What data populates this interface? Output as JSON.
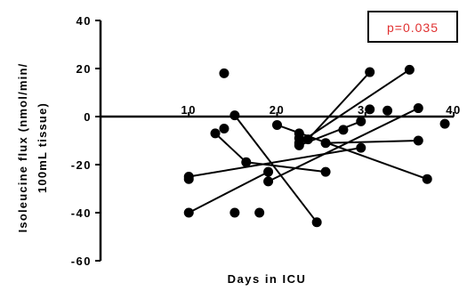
{
  "chart_data": {
    "type": "scatter",
    "title": "",
    "xlabel": "Days in ICU",
    "ylabel_lines": [
      "Isoleucine flux  (nmol/min/",
      "100mL tissue)"
    ],
    "xlim": [
      0,
      40
    ],
    "ylim": [
      -60,
      40
    ],
    "x_ticks": [
      10,
      20,
      30,
      40
    ],
    "y_ticks": [
      40,
      20,
      0,
      -20,
      -40,
      -60
    ],
    "annotation": "p=0.035",
    "annotation_color": "#e03030",
    "grid": false,
    "points": [
      {
        "x": 10.0,
        "y": -25
      },
      {
        "x": 10.0,
        "y": -26
      },
      {
        "x": 10.0,
        "y": -40
      },
      {
        "x": 13.0,
        "y": -7
      },
      {
        "x": 14.0,
        "y": -5
      },
      {
        "x": 14.0,
        "y": 18
      },
      {
        "x": 15.2,
        "y": 0.5
      },
      {
        "x": 15.2,
        "y": -40
      },
      {
        "x": 16.5,
        "y": -19
      },
      {
        "x": 18.0,
        "y": -40
      },
      {
        "x": 19.0,
        "y": -23
      },
      {
        "x": 19.0,
        "y": -27
      },
      {
        "x": 20.0,
        "y": -3.5
      },
      {
        "x": 22.5,
        "y": -7
      },
      {
        "x": 22.5,
        "y": -9
      },
      {
        "x": 22.5,
        "y": -11
      },
      {
        "x": 22.5,
        "y": -12
      },
      {
        "x": 23.5,
        "y": -9.5
      },
      {
        "x": 24.5,
        "y": -44
      },
      {
        "x": 25.5,
        "y": -11
      },
      {
        "x": 25.5,
        "y": -23
      },
      {
        "x": 27.5,
        "y": -5.5
      },
      {
        "x": 29.5,
        "y": -2
      },
      {
        "x": 29.5,
        "y": -13
      },
      {
        "x": 30.5,
        "y": 18.5
      },
      {
        "x": 30.5,
        "y": 3
      },
      {
        "x": 32.5,
        "y": 2.5
      },
      {
        "x": 35.0,
        "y": 19.5
      },
      {
        "x": 36.0,
        "y": 3.5
      },
      {
        "x": 36.0,
        "y": -10
      },
      {
        "x": 37.0,
        "y": -26
      },
      {
        "x": 39.0,
        "y": -3
      }
    ],
    "segments": [
      {
        "x1": 10.0,
        "y1": -25,
        "x2": 29.5,
        "y2": -13
      },
      {
        "x1": 10.0,
        "y1": -40,
        "x2": 19.0,
        "y2": -23
      },
      {
        "x1": 13.0,
        "y1": -7,
        "x2": 16.5,
        "y2": -19
      },
      {
        "x1": 16.5,
        "y1": -19,
        "x2": 25.5,
        "y2": -23
      },
      {
        "x1": 15.2,
        "y1": 0.5,
        "x2": 24.5,
        "y2": -44
      },
      {
        "x1": 19.0,
        "y1": -27,
        "x2": 36.0,
        "y2": 3.5
      },
      {
        "x1": 20.0,
        "y1": -3.5,
        "x2": 37.0,
        "y2": -26
      },
      {
        "x1": 22.5,
        "y1": -11,
        "x2": 35.0,
        "y2": 19.5
      },
      {
        "x1": 23.5,
        "y1": -9.5,
        "x2": 30.5,
        "y2": 18.5
      },
      {
        "x1": 22.5,
        "y1": -12,
        "x2": 29.5,
        "y2": -2
      },
      {
        "x1": 25.5,
        "y1": -11,
        "x2": 36.0,
        "y2": -10
      }
    ]
  }
}
